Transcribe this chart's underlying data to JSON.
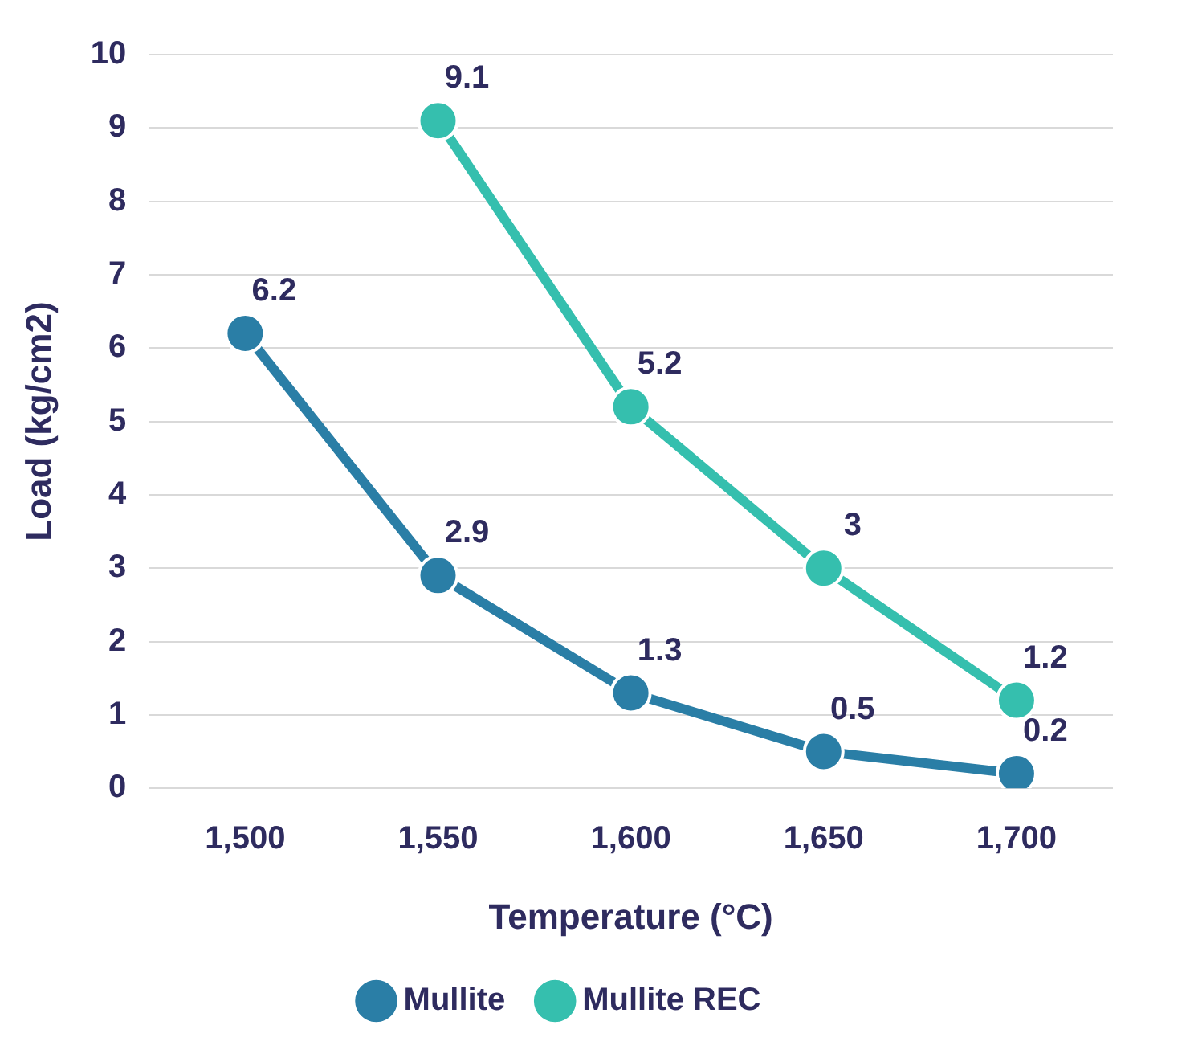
{
  "chart_data": {
    "type": "line",
    "xlabel": "Temperature (°C)",
    "ylabel": "Load (kg/cm2)",
    "categories": [
      "1,500",
      "1,550",
      "1,600",
      "1,650",
      "1,700"
    ],
    "series": [
      {
        "name": "Mullite",
        "color": "#2a7ea6",
        "values": [
          6.2,
          2.9,
          1.3,
          0.5,
          0.2
        ]
      },
      {
        "name": "Mullite REC",
        "color": "#35bfae",
        "values": [
          null,
          9.1,
          5.2,
          3,
          1.2
        ]
      }
    ],
    "ylim": [
      0,
      10
    ],
    "yticks": [
      0,
      1,
      2,
      3,
      4,
      5,
      6,
      7,
      8,
      9,
      10
    ],
    "grid": "y",
    "legend": "bottom",
    "marker": "circle",
    "line_style": "solid",
    "data_labels": true
  }
}
